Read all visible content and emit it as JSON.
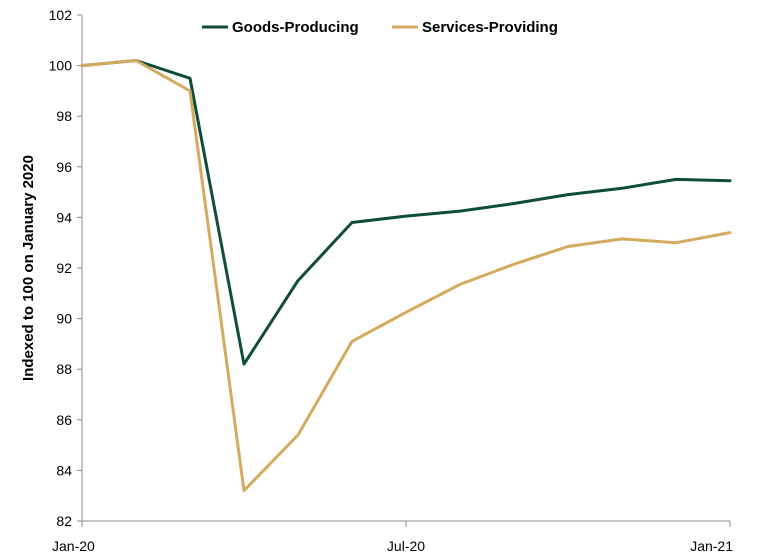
{
  "chart_data": {
    "type": "line",
    "title": "",
    "xlabel": "",
    "ylabel": "Indexed to 100 on January 2020",
    "x": [
      "Jan-20",
      "Feb-20",
      "Mar-20",
      "Apr-20",
      "May-20",
      "Jun-20",
      "Jul-20",
      "Aug-20",
      "Sep-20",
      "Oct-20",
      "Nov-20",
      "Dec-20",
      "Jan-21"
    ],
    "x_tick_labels": [
      "Jan-20",
      "Jul-20",
      "Jan-21"
    ],
    "ylim": [
      82,
      102
    ],
    "y_ticks": [
      82,
      84,
      86,
      88,
      90,
      92,
      94,
      96,
      98,
      100,
      102
    ],
    "grid": false,
    "legend_position": "top",
    "series": [
      {
        "name": "Goods-Producing",
        "color": "#0f4d3a",
        "values": [
          100.0,
          100.2,
          99.5,
          88.2,
          91.5,
          93.8,
          94.05,
          94.25,
          94.55,
          94.9,
          95.15,
          95.5,
          95.45
        ]
      },
      {
        "name": "Services-Providing",
        "color": "#d4aa5e",
        "values": [
          100.0,
          100.2,
          99.0,
          83.2,
          85.4,
          89.1,
          90.25,
          91.35,
          92.15,
          92.85,
          93.15,
          93.0,
          93.4
        ]
      }
    ]
  }
}
